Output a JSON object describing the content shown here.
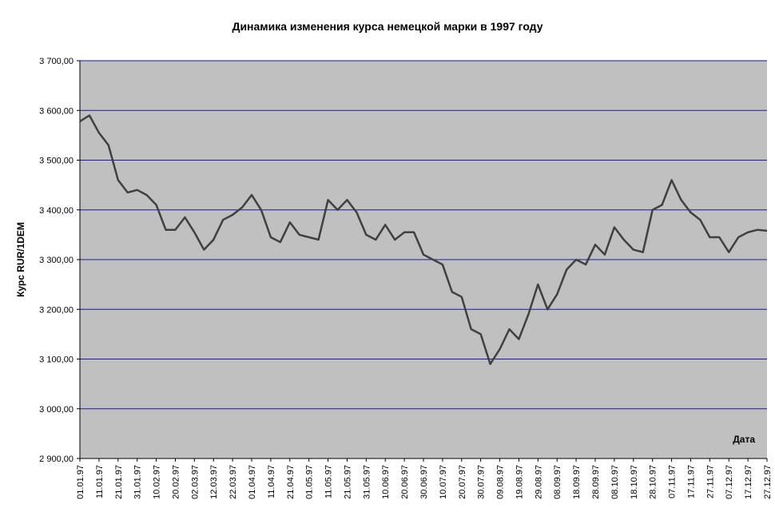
{
  "chart_data": {
    "type": "line",
    "title": "Динамика изменения курса немецкой марки в 1997 году",
    "y_label": "Курс RUR/1DEM",
    "x_label": "Дата",
    "x": [
      "01.01.97",
      "06.01.97",
      "11.01.97",
      "16.01.97",
      "21.01.97",
      "26.01.97",
      "31.01.97",
      "05.02.97",
      "10.02.97",
      "15.02.97",
      "20.02.97",
      "25.02.97",
      "02.03.97",
      "07.03.97",
      "12.03.97",
      "17.03.97",
      "22.03.97",
      "27.03.97",
      "01.04.97",
      "06.04.97",
      "11.04.97",
      "16.04.97",
      "21.04.97",
      "26.04.97",
      "01.05.97",
      "06.05.97",
      "11.05.97",
      "16.05.97",
      "21.05.97",
      "26.05.97",
      "31.05.97",
      "05.06.97",
      "10.06.97",
      "15.06.97",
      "20.06.97",
      "25.06.97",
      "30.06.97",
      "05.07.97",
      "10.07.97",
      "15.07.97",
      "20.07.97",
      "25.07.97",
      "30.07.97",
      "04.08.97",
      "09.08.97",
      "14.08.97",
      "19.08.97",
      "24.08.97",
      "29.08.97",
      "03.09.97",
      "08.09.97",
      "13.09.97",
      "18.09.97",
      "23.09.97",
      "28.09.97",
      "03.10.97",
      "08.10.97",
      "13.10.97",
      "18.10.97",
      "23.10.97",
      "28.10.97",
      "02.11.97",
      "07.11.97",
      "12.11.97",
      "17.11.97",
      "22.11.97",
      "27.11.97",
      "02.12.97",
      "07.12.97",
      "12.12.97",
      "17.12.97",
      "22.12.97",
      "27.12.97"
    ],
    "series": [
      {
        "name": "Курс",
        "color": "#404040",
        "values": [
          3578,
          3590,
          3555,
          3530,
          3460,
          3435,
          3440,
          3430,
          3410,
          3360,
          3360,
          3385,
          3355,
          3320,
          3340,
          3380,
          3390,
          3405,
          3430,
          3400,
          3345,
          3335,
          3375,
          3350,
          3345,
          3340,
          3420,
          3400,
          3420,
          3395,
          3350,
          3340,
          3370,
          3340,
          3355,
          3355,
          3310,
          3300,
          3290,
          3235,
          3225,
          3160,
          3150,
          3090,
          3120,
          3160,
          3140,
          3190,
          3250,
          3200,
          3230,
          3280,
          3300,
          3290,
          3330,
          3310,
          3365,
          3340,
          3320,
          3315,
          3400,
          3410,
          3460,
          3420,
          3395,
          3380,
          3345,
          3345,
          3315,
          3345,
          3355,
          3360,
          3358
        ]
      }
    ],
    "xlim": [
      "01.01.97",
      "27.12.97"
    ],
    "xticks": [
      "01.01.97",
      "11.01.97",
      "21.01.97",
      "31.01.97",
      "10.02.97",
      "20.02.97",
      "02.03.97",
      "12.03.97",
      "22.03.97",
      "01.04.97",
      "11.04.97",
      "21.04.97",
      "01.05.97",
      "11.05.97",
      "21.05.97",
      "31.05.97",
      "10.06.97",
      "20.06.97",
      "30.06.97",
      "10.07.97",
      "20.07.97",
      "30.07.97",
      "09.08.97",
      "19.08.97",
      "29.08.97",
      "08.09.97",
      "18.09.97",
      "28.09.97",
      "08.10.97",
      "18.10.97",
      "28.10.97",
      "07.11.97",
      "17.11.97",
      "27.11.97",
      "07.12.97",
      "17.12.97",
      "27.12.97"
    ],
    "ylim": [
      2900,
      3700
    ],
    "yticks": [
      {
        "value": 2900,
        "label": "2 900,00"
      },
      {
        "value": 3000,
        "label": "3 000,00"
      },
      {
        "value": 3100,
        "label": "3 100,00"
      },
      {
        "value": 3200,
        "label": "3 200,00"
      },
      {
        "value": 3300,
        "label": "3 300,00"
      },
      {
        "value": 3400,
        "label": "3 400,00"
      },
      {
        "value": 3500,
        "label": "3 500,00"
      },
      {
        "value": 3600,
        "label": "3 600,00"
      },
      {
        "value": 3700,
        "label": "3 700,00"
      }
    ],
    "grid": true,
    "plot_background": "#c0c0c0"
  }
}
